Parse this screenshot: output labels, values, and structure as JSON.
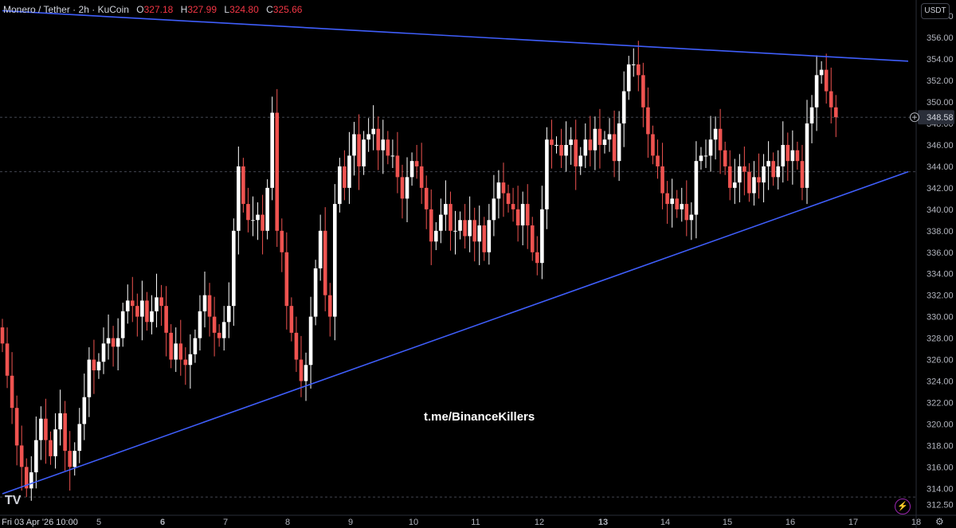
{
  "header": {
    "symbol": "Monero / Tether",
    "interval": "2h",
    "exchange": "KuCoin",
    "open_label": "O",
    "open": "327.18",
    "high_label": "H",
    "high": "327.99",
    "low_label": "L",
    "low": "324.80",
    "close_label": "C",
    "close": "325.66"
  },
  "currency_label": "USDT",
  "watermark": "t.me/BinanceKillers",
  "logo_text": "TV",
  "colors": {
    "up": "#ffffff",
    "down": "#ef5350",
    "trendline": "#3f5efb",
    "background": "#000000",
    "current_price": "#2a2e39"
  },
  "icons": {
    "logo": "tradingview-logo-icon",
    "settings": "gear-icon",
    "alert": "lightning-icon",
    "crosshair": "crosshair-plus-icon"
  },
  "chart_data": {
    "type": "candlestick",
    "y_axis": {
      "min": 311.5,
      "max": 359.5,
      "ticks": [
        "358.00",
        "356.00",
        "354.00",
        "352.00",
        "350.00",
        "348.00",
        "346.00",
        "344.00",
        "342.00",
        "340.00",
        "338.00",
        "336.00",
        "334.00",
        "332.00",
        "330.00",
        "328.00",
        "326.00",
        "324.00",
        "322.00",
        "320.00",
        "318.00",
        "316.00",
        "314.00",
        "312.50"
      ],
      "position": "right"
    },
    "x_axis": {
      "ticks": [
        "Fri 03 Apr '26  10:00",
        "5",
        "6",
        "7",
        "8",
        "9",
        "10",
        "11",
        "12",
        "13",
        "14",
        "15",
        "16",
        "17",
        "18"
      ],
      "bold_ticks": [
        "6",
        "13"
      ]
    },
    "current_price": "348.58",
    "reference_price": 343.5,
    "closes": [
      327.5,
      324.5,
      321.5,
      318.0,
      316.0,
      314.0,
      315.5,
      318.5,
      320.5,
      318.5,
      317.0,
      319.5,
      321.0,
      317.5,
      316.0,
      317.5,
      320.0,
      322.5,
      326.0,
      325.0,
      325.8,
      327.5,
      328.0,
      327.2,
      328.0,
      330.5,
      331.5,
      331.0,
      330.0,
      331.5,
      329.5,
      330.5,
      331.8,
      331.0,
      328.5,
      326.0,
      327.5,
      326.0,
      325.5,
      326.5,
      328.0,
      330.5,
      332.0,
      330.0,
      328.5,
      328.0,
      329.5,
      331.0,
      338.0,
      344.0,
      340.5,
      339.0,
      339.0,
      339.5,
      338.0,
      342.0,
      349.0,
      338.0,
      336.0,
      331.0,
      328.5,
      326.0,
      324.0,
      325.5,
      330.0,
      334.5,
      338.0,
      332.0,
      330.0,
      340.5,
      344.0,
      342.0,
      345.0,
      347.0,
      344.0,
      346.5,
      347.0,
      347.5,
      345.5,
      346.5,
      345.0,
      345.0,
      343.0,
      341.0,
      343.0,
      344.5,
      344.0,
      342.0,
      340.0,
      337.0,
      338.0,
      339.5,
      340.5,
      338.0,
      338.0,
      339.0,
      337.5,
      339.0,
      337.0,
      338.5,
      336.0,
      339.0,
      341.0,
      342.5,
      341.5,
      340.5,
      340.0,
      338.5,
      340.5,
      338.5,
      336.0,
      335.0,
      340.0,
      346.5,
      346.0,
      346.0,
      345.0,
      346.0,
      346.5,
      344.0,
      345.0,
      346.5,
      345.5,
      347.5,
      346.0,
      346.5,
      347.0,
      344.5,
      348.0,
      351.0,
      353.5,
      353.5,
      352.5,
      349.5,
      347.0,
      345.0,
      344.0,
      341.5,
      340.5,
      341.0,
      340.0,
      340.5,
      339.0,
      339.5,
      344.5,
      345.0,
      345.0,
      346.5,
      347.5,
      345.5,
      344.0,
      342.0,
      342.5,
      344.0,
      343.5,
      341.5,
      343.0,
      342.5,
      344.0,
      344.5,
      343.0,
      344.0,
      346.0,
      344.5,
      345.5,
      344.5,
      342.0,
      348.0,
      349.5,
      352.5,
      353.0,
      351.0,
      349.5,
      348.58
    ],
    "trendlines": [
      {
        "name": "",
        "points": [
          [
            0,
            358.5
          ],
          [
            188,
            353.8
          ]
        ]
      },
      {
        "name": "",
        "points": [
          [
            0,
            313.5
          ],
          [
            188,
            343.5
          ]
        ]
      }
    ]
  }
}
